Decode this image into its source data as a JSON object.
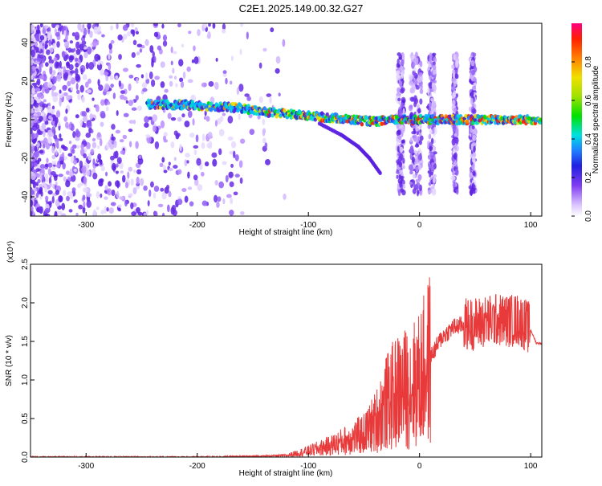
{
  "page": {
    "title": "C2E1.2025.149.00.32.G27"
  },
  "colors": {
    "snr_line": "#e83a3a",
    "background": "#ffffff",
    "spectrogram_palette": [
      "#ffffff",
      "#e6d8ff",
      "#c9a8ff",
      "#8f5cf5",
      "#5a1fe0",
      "#2222cc",
      "#1f6fff",
      "#00b8ff",
      "#00e0c8",
      "#00e000",
      "#7fe000",
      "#e6e000",
      "#ff8000",
      "#ff2000",
      "#ff0080"
    ]
  },
  "chart_data": [
    {
      "type": "heatmap",
      "title": "C2E1.2025.149.00.32.G27",
      "xlabel": "Height of straight line (km)",
      "ylabel": "Frequency (Hz)",
      "xlim": [
        -350,
        110
      ],
      "ylim": [
        -50,
        50
      ],
      "x_ticks": [
        -300,
        -200,
        -100,
        0,
        100
      ],
      "y_ticks": [
        -40,
        -20,
        0,
        20,
        40
      ],
      "colorbar": {
        "label": "Normalized spectral amplitude",
        "range": [
          0.0,
          1.0
        ],
        "ticks": [
          "0.0",
          "0.2",
          "0.4",
          "0.6",
          "0.8"
        ]
      },
      "ridge": {
        "description": "main spectral line (frequency in Hz vs height in km)",
        "x": [
          -240,
          -200,
          -160,
          -140,
          -120,
          -100,
          -80,
          -60,
          -40,
          -20,
          0,
          20,
          60,
          100
        ],
        "y": [
          8,
          7.5,
          6,
          4,
          3,
          2,
          1,
          0,
          -1,
          0,
          0,
          0,
          0,
          0
        ]
      },
      "curve_branch": {
        "x": [
          -90,
          -70,
          -55,
          -45,
          -35
        ],
        "y": [
          -2,
          -8,
          -14,
          -20,
          -28
        ]
      }
    },
    {
      "type": "line",
      "xlabel": "Height of straight line (km)",
      "ylabel": "SNR (10 * v/v)",
      "multiplier_label": "(x10⁴)",
      "xlim": [
        -350,
        110
      ],
      "ylim": [
        0,
        2.5
      ],
      "x_ticks": [
        -300,
        -200,
        -100,
        0,
        100
      ],
      "y_ticks": [
        "0.0",
        "0.5",
        "1.0",
        "1.5",
        "2.0",
        "2.5"
      ],
      "series": [
        {
          "x": [
            -350,
            -300,
            -250,
            -200,
            -150,
            -120,
            -100,
            -80,
            -60,
            -50,
            -40,
            -30,
            -20,
            -10,
            0,
            10,
            20,
            30,
            40,
            50,
            60,
            70,
            80,
            90,
            95,
            100,
            105,
            110
          ],
          "y": [
            0.0,
            0.0,
            0.0,
            0.0,
            0.01,
            0.02,
            0.08,
            0.15,
            0.25,
            0.3,
            0.45,
            0.7,
            0.85,
            0.9,
            1.0,
            1.3,
            1.55,
            1.68,
            1.72,
            1.73,
            1.76,
            1.78,
            1.77,
            1.78,
            1.72,
            1.65,
            1.48,
            1.47
          ]
        }
      ]
    }
  ]
}
